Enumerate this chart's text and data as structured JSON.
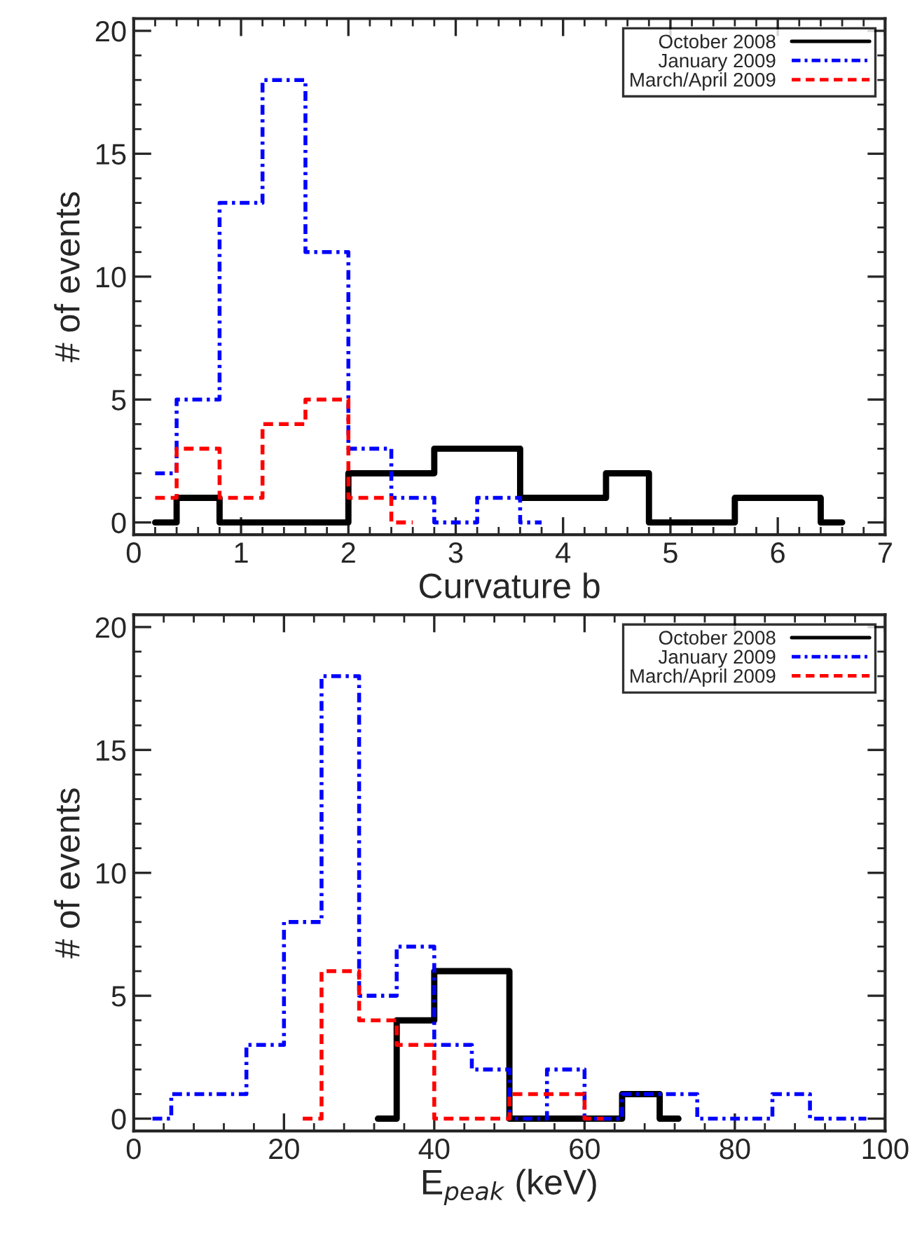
{
  "chart_data": [
    {
      "type": "step",
      "xlabel": "Curvature b",
      "ylabel": "# of events",
      "xlim": [
        0,
        7
      ],
      "xticks": [
        0,
        1,
        2,
        3,
        4,
        5,
        6,
        7
      ],
      "ylim": [
        -0.5,
        20.5
      ],
      "yticks": [
        0,
        5,
        10,
        15,
        20
      ],
      "legend": "top right",
      "grid": false,
      "series": [
        {
          "name": "October 2008",
          "color": "#000000",
          "line_style": "solid",
          "x": [
            0.2,
            0.6,
            1.0,
            1.4,
            1.8,
            2.2,
            2.6,
            3.0,
            3.4,
            3.8,
            4.2,
            4.6,
            5.0,
            5.4,
            5.8,
            6.2,
            6.6
          ],
          "values": [
            0,
            1,
            0,
            0,
            0,
            2,
            2,
            3,
            3,
            1,
            1,
            2,
            0,
            0,
            1,
            1,
            0
          ]
        },
        {
          "name": "January 2009",
          "color": "#0000ff",
          "line_style": "dashdot",
          "x": [
            0.2,
            0.6,
            1.0,
            1.4,
            1.8,
            2.2,
            2.6,
            3.0,
            3.4,
            3.8
          ],
          "values": [
            2,
            5,
            13,
            18,
            11,
            3,
            1,
            0,
            1,
            0
          ]
        },
        {
          "name": "March/April 2009",
          "color": "#ff0000",
          "line_style": "dashed",
          "x": [
            0.2,
            0.6,
            1.0,
            1.4,
            1.8,
            2.2,
            2.6
          ],
          "values": [
            1,
            3,
            1,
            4,
            5,
            1,
            0
          ]
        }
      ]
    },
    {
      "type": "step",
      "xlabel": "E$_{peak}$ (keV)",
      "ylabel": "# of events",
      "xlim": [
        0,
        100
      ],
      "xticks": [
        0,
        20,
        40,
        60,
        80,
        100
      ],
      "ylim": [
        -0.5,
        20.5
      ],
      "yticks": [
        0,
        5,
        10,
        15,
        20
      ],
      "legend": "top right",
      "grid": false,
      "series": [
        {
          "name": "October 2008",
          "color": "#000000",
          "line_style": "solid",
          "x": [
            32.5,
            37.5,
            42.5,
            47.5,
            52.5,
            57.5,
            62.5,
            67.5,
            72.5
          ],
          "values": [
            0,
            4,
            6,
            6,
            0,
            0,
            0,
            1,
            0
          ]
        },
        {
          "name": "January 2009",
          "color": "#0000ff",
          "line_style": "dashdot",
          "x": [
            2.5,
            7.5,
            12.5,
            17.5,
            22.5,
            27.5,
            32.5,
            37.5,
            42.5,
            47.5,
            52.5,
            57.5,
            62.5,
            67.5,
            72.5,
            77.5,
            82.5,
            87.5,
            92.5,
            97.5
          ],
          "values": [
            0,
            1,
            1,
            3,
            8,
            18,
            5,
            7,
            3,
            2,
            0,
            2,
            0,
            1,
            1,
            0,
            0,
            1,
            0,
            0
          ]
        },
        {
          "name": "March/April 2009",
          "color": "#ff0000",
          "line_style": "dashed",
          "x": [
            22.5,
            27.5,
            32.5,
            37.5,
            42.5,
            47.5,
            52.5,
            57.5,
            62.5
          ],
          "values": [
            0,
            6,
            4,
            3,
            0,
            0,
            1,
            1,
            0
          ]
        }
      ]
    }
  ]
}
